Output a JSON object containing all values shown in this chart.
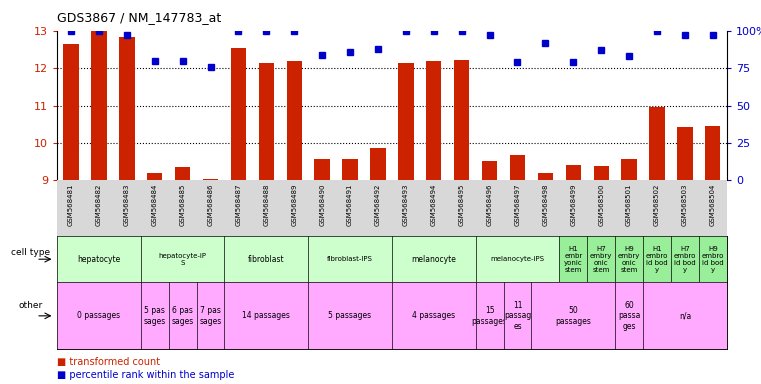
{
  "title": "GDS3867 / NM_147783_at",
  "samples": [
    "GSM568481",
    "GSM568482",
    "GSM568483",
    "GSM568484",
    "GSM568485",
    "GSM568486",
    "GSM568487",
    "GSM568488",
    "GSM568489",
    "GSM568490",
    "GSM568491",
    "GSM568492",
    "GSM568493",
    "GSM568494",
    "GSM568495",
    "GSM568496",
    "GSM568497",
    "GSM568498",
    "GSM568499",
    "GSM568500",
    "GSM568501",
    "GSM568502",
    "GSM568503",
    "GSM568504"
  ],
  "bar_values": [
    12.65,
    13.0,
    12.83,
    9.2,
    9.35,
    9.05,
    12.55,
    12.15,
    12.2,
    9.57,
    9.57,
    9.88,
    12.15,
    12.18,
    12.22,
    9.52,
    9.68,
    9.2,
    9.42,
    9.38,
    9.57,
    10.95,
    10.42,
    10.45
  ],
  "dot_values": [
    100,
    100,
    97,
    80,
    80,
    76,
    100,
    100,
    100,
    84,
    86,
    88,
    100,
    100,
    100,
    97,
    79,
    92,
    79,
    87,
    83,
    100,
    97,
    97
  ],
  "ylim": [
    9,
    13
  ],
  "yticks_left": [
    9,
    10,
    11,
    12,
    13
  ],
  "yticks_right": [
    0,
    25,
    50,
    75,
    100
  ],
  "bar_color": "#cc2200",
  "dot_color": "#0000cc",
  "bg_xtick": "#d8d8d8",
  "cell_type_bg": "#ccffcc",
  "cell_type_dark": "#99ee99",
  "other_bg": "#ffaaff",
  "cell_type_groups": [
    {
      "label": "hepatocyte",
      "start": 0,
      "end": 2
    },
    {
      "label": "hepatocyte-iP\nS",
      "start": 3,
      "end": 5
    },
    {
      "label": "fibroblast",
      "start": 6,
      "end": 8
    },
    {
      "label": "fibroblast-IPS",
      "start": 9,
      "end": 11
    },
    {
      "label": "melanocyte",
      "start": 12,
      "end": 14
    },
    {
      "label": "melanocyte-iPS",
      "start": 15,
      "end": 17
    },
    {
      "label": "H1\nembr\nyonic\nstem",
      "start": 18,
      "end": 18
    },
    {
      "label": "H7\nembry\nonic\nstem",
      "start": 19,
      "end": 19
    },
    {
      "label": "H9\nembry\nonic\nstem",
      "start": 20,
      "end": 20
    },
    {
      "label": "H1\nembro\nid bod\ny",
      "start": 21,
      "end": 21
    },
    {
      "label": "H7\nembro\nid bod\ny",
      "start": 22,
      "end": 22
    },
    {
      "label": "H9\nembro\nid bod\ny",
      "start": 23,
      "end": 23
    }
  ],
  "other_groups": [
    {
      "label": "0 passages",
      "start": 0,
      "end": 2
    },
    {
      "label": "5 pas\nsages",
      "start": 3,
      "end": 3
    },
    {
      "label": "6 pas\nsages",
      "start": 4,
      "end": 4
    },
    {
      "label": "7 pas\nsages",
      "start": 5,
      "end": 5
    },
    {
      "label": "14 passages",
      "start": 6,
      "end": 8
    },
    {
      "label": "5 passages",
      "start": 9,
      "end": 11
    },
    {
      "label": "4 passages",
      "start": 12,
      "end": 14
    },
    {
      "label": "15\npassages",
      "start": 15,
      "end": 15
    },
    {
      "label": "11\npassag\nes",
      "start": 16,
      "end": 16
    },
    {
      "label": "50\npassages",
      "start": 17,
      "end": 19
    },
    {
      "label": "60\npassa\nges",
      "start": 20,
      "end": 20
    },
    {
      "label": "n/a",
      "start": 21,
      "end": 23
    }
  ]
}
